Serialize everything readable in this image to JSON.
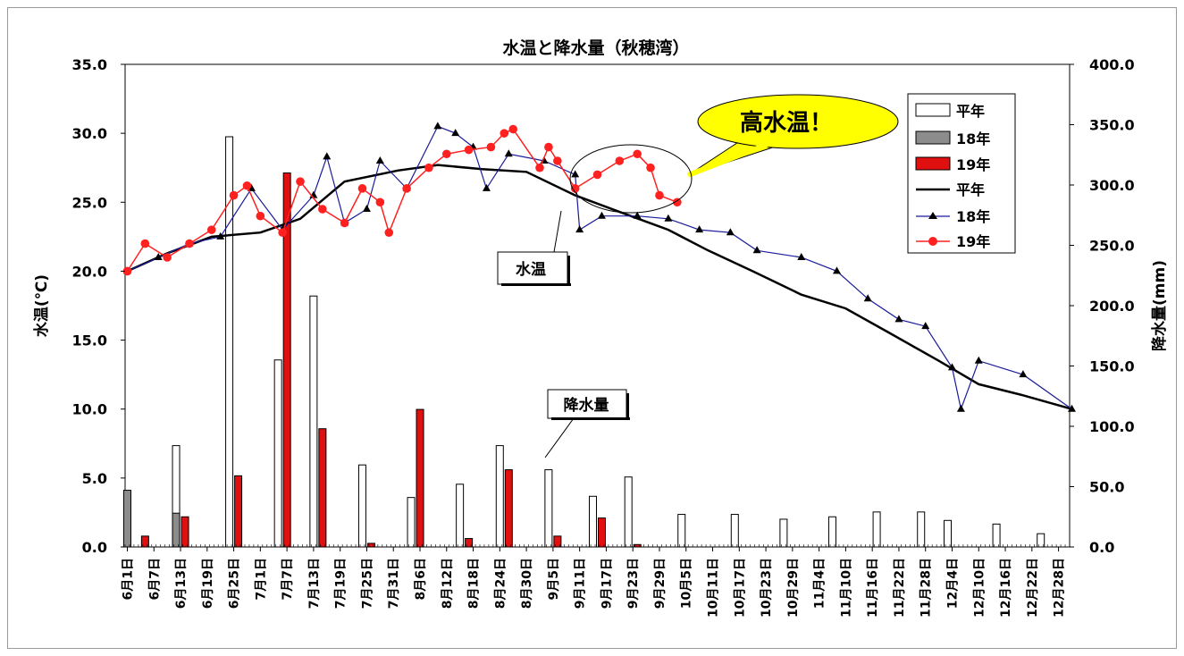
{
  "chart_data": {
    "type": "bar+line",
    "title": "水温と降水量（秋穂湾）",
    "y_left": {
      "label": "水温(℃)",
      "min": 0,
      "max": 35,
      "step": 5,
      "ticks": [
        "0.0",
        "5.0",
        "10.0",
        "15.0",
        "20.0",
        "25.0",
        "30.0",
        "35.0"
      ]
    },
    "y_right": {
      "label": "降水量(mm)",
      "min": 0,
      "max": 400,
      "step": 50,
      "ticks": [
        "0.0",
        "50.0",
        "100.0",
        "150.0",
        "200.0",
        "250.0",
        "300.0",
        "350.0",
        "400.0"
      ]
    },
    "x_ticks": [
      "6月1日",
      "6月7日",
      "6月13日",
      "6月19日",
      "6月25日",
      "7月1日",
      "7月7日",
      "7月13日",
      "7月19日",
      "7月25日",
      "7月31日",
      "8月6日",
      "8月12日",
      "8月18日",
      "8月24日",
      "8月30日",
      "9月5日",
      "9月11日",
      "9月17日",
      "9月23日",
      "9月29日",
      "10月5日",
      "10月11日",
      "10月17日",
      "10月23日",
      "10月29日",
      "11月4日",
      "11月10日",
      "11月16日",
      "11月22日",
      "11月28日",
      "12月4日",
      "12月10日",
      "12月16日",
      "12月22日",
      "12月28日"
    ],
    "legend": [
      "平年",
      "18年",
      "19年",
      "平年",
      "18年",
      "19年"
    ],
    "colors": {
      "heinen": "#ffffff",
      "h18": "#8c8c8c",
      "h19": "#e01010",
      "line_heinen": "#000000",
      "line_h18": "#1a1a9a",
      "line_h19": "#ff2020"
    },
    "precip": {
      "x": [
        "6月2日",
        "6月4日",
        "6月13日",
        "6月25日",
        "7月6日",
        "7月14日",
        "7月25日",
        "8月5日",
        "8月16日",
        "8月25日",
        "9月5日",
        "9月15日",
        "9月23日",
        "10月5日",
        "10月17日",
        "10月28日",
        "11月8日",
        "11月18日",
        "11月28日",
        "12月4日",
        "12月15日",
        "12月25日"
      ],
      "heinen": [
        45,
        0,
        84,
        340,
        155,
        208,
        68,
        41,
        52,
        84,
        64,
        42,
        58,
        27,
        27,
        23,
        25,
        29,
        29,
        22,
        19,
        11
      ],
      "h18": [
        47,
        0,
        28,
        0,
        0,
        0,
        0,
        0,
        0,
        0,
        0,
        0,
        0,
        0,
        0,
        0,
        0,
        0,
        0,
        0,
        0,
        0
      ],
      "h19": [
        0,
        9,
        25,
        59,
        310,
        98,
        3,
        114,
        7,
        64,
        9,
        24,
        2,
        0,
        0,
        0,
        0,
        0,
        0,
        0,
        0,
        0
      ]
    },
    "temp_heinen": {
      "x": [
        "6月1日",
        "6月10日",
        "6月20日",
        "7月1日",
        "7月10日",
        "7月20日",
        "8月1日",
        "8月10日",
        "8月20日",
        "8月30日",
        "9月10日",
        "9月20日",
        "10月1日",
        "10月10日",
        "10月20日",
        "10月31日",
        "11月10日",
        "11月20日",
        "12月1日",
        "12月10日",
        "12月20日",
        "12月31日"
      ],
      "y": [
        20.0,
        21.3,
        22.5,
        22.8,
        23.8,
        26.5,
        27.3,
        27.7,
        27.4,
        27.2,
        25.5,
        24.3,
        23.0,
        21.5,
        20.0,
        18.3,
        17.3,
        15.5,
        13.5,
        11.8,
        11.0,
        10.0
      ]
    },
    "temp_18": {
      "x": [
        "6月1日",
        "6月8日",
        "6月15日",
        "6月22日",
        "6月29日",
        "7月6日",
        "7月13日",
        "7月16日",
        "7月20日",
        "7月25日",
        "7月28日",
        "8月3日",
        "8月10日",
        "8月14日",
        "8月18日",
        "8月21日",
        "8月26日",
        "9月3日",
        "9月10日",
        "9月11日",
        "9月16日",
        "9月24日",
        "10月1日",
        "10月8日",
        "10月15日",
        "10月21日",
        "10月31日",
        "11月8日",
        "11月15日",
        "11月22日",
        "11月28日",
        "12月4日",
        "12月6日",
        "12月10日",
        "12月20日",
        "12月31日"
      ],
      "y": [
        20.0,
        21.0,
        22.0,
        22.5,
        26.0,
        23.0,
        25.5,
        28.3,
        23.5,
        24.5,
        28.0,
        26.0,
        30.5,
        30.0,
        29.0,
        26.0,
        28.5,
        28.0,
        27.0,
        23.0,
        24.0,
        24.0,
        23.8,
        23.0,
        22.8,
        21.5,
        21.0,
        20.0,
        18.0,
        16.5,
        16.0,
        13.0,
        10.0,
        13.5,
        12.5,
        10.0
      ]
    },
    "temp_19": {
      "x": [
        "6月1日",
        "6月5日",
        "6月10日",
        "6月15日",
        "6月20日",
        "6月25日",
        "6月28日",
        "7月1日",
        "7月6日",
        "7月10日",
        "7月15日",
        "7月20日",
        "7月24日",
        "7月28日",
        "7月30日",
        "8月3日",
        "8月8日",
        "8月12日",
        "8月17日",
        "8月22日",
        "8月25日",
        "8月27日",
        "9月2日",
        "9月4日",
        "9月6日",
        "9月10日",
        "9月15日",
        "9月20日",
        "9月24日",
        "9月27日",
        "9月29日",
        "10月3日"
      ],
      "y": [
        20.0,
        22.0,
        21.0,
        22.0,
        23.0,
        25.5,
        26.2,
        24.0,
        22.8,
        26.5,
        24.5,
        23.5,
        26.0,
        25.0,
        22.8,
        26.0,
        27.5,
        28.5,
        28.8,
        29.0,
        30.0,
        30.3,
        27.5,
        29.0,
        28.0,
        26.0,
        27.0,
        28.0,
        28.5,
        27.5,
        25.5,
        25.0
      ]
    },
    "annotations": {
      "callout": "高水温！",
      "label_temp": "水温",
      "label_precip": "降水量"
    }
  }
}
